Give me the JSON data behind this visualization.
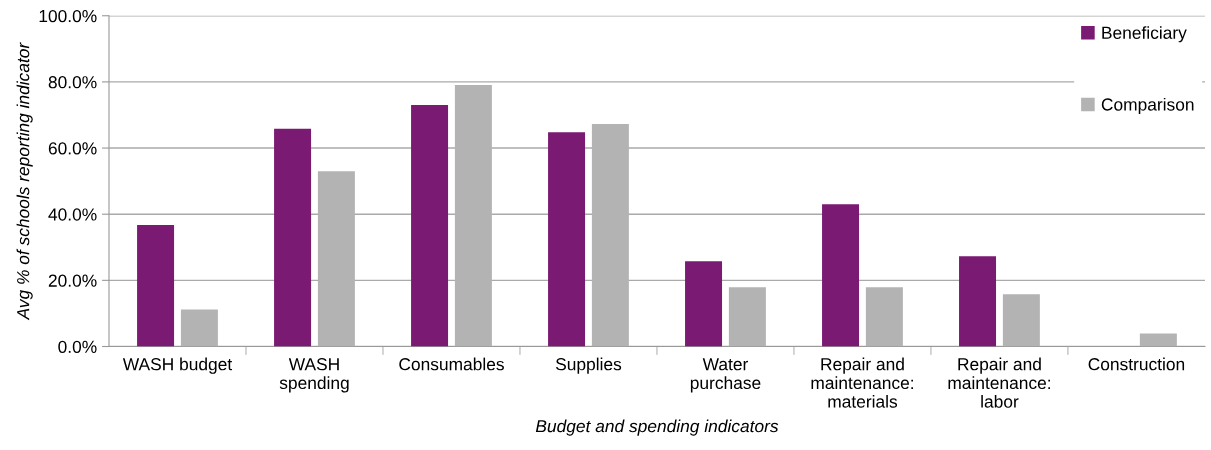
{
  "chart_data": {
    "type": "bar",
    "xlabel": "Budget and spending indicators",
    "ylabel": "Avg % of schools reporting indicator",
    "categories": [
      "WASH budget",
      "WASH\nspending",
      "Consumables",
      "Supplies",
      "Water\npurchase",
      "Repair and\nmaintenance:\nmaterials",
      "Repair and\nmaintenance:\nlabor",
      "Construction"
    ],
    "series": [
      {
        "name": "Beneficiary",
        "color": "#7b1a73",
        "values": [
          36.7,
          65.8,
          73.0,
          64.8,
          25.8,
          43.0,
          27.3,
          0
        ]
      },
      {
        "name": "Comparison",
        "color": "#b3b3b3",
        "values": [
          11.2,
          53.0,
          79.1,
          67.3,
          17.9,
          17.9,
          15.8,
          3.9
        ]
      }
    ],
    "ylim": [
      0,
      100
    ],
    "yticks": [
      {
        "value": 0,
        "label": "0.0%"
      },
      {
        "value": 20,
        "label": "20.0%"
      },
      {
        "value": 40,
        "label": "40.0%"
      },
      {
        "value": 60,
        "label": "60.0%"
      },
      {
        "value": 80,
        "label": "80.0%"
      },
      {
        "value": 100,
        "label": "100.0%"
      }
    ],
    "grid": "y",
    "legend": "top right"
  }
}
